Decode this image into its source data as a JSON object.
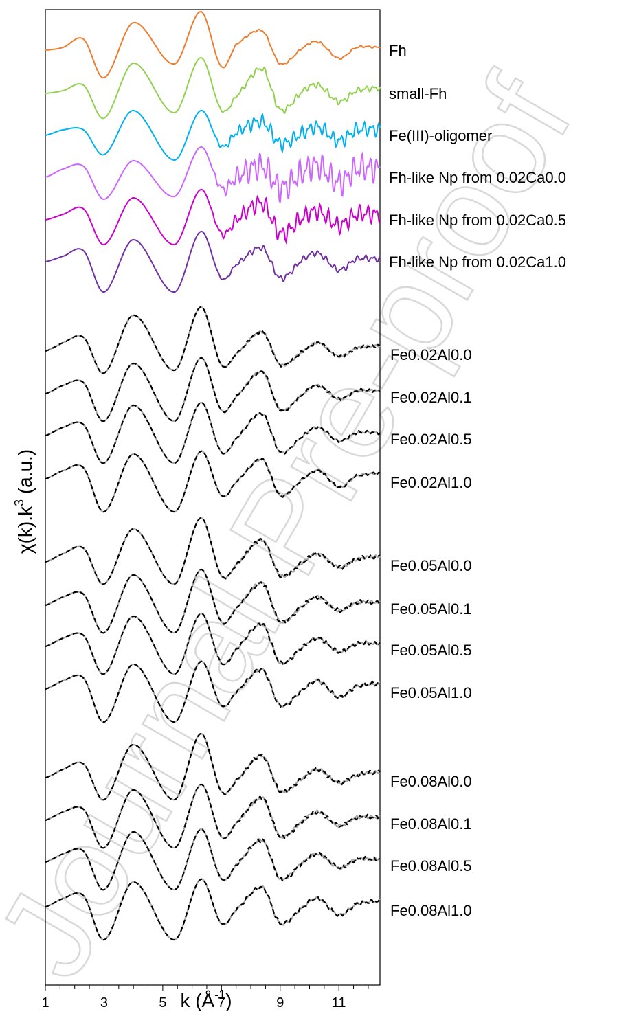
{
  "watermark": "Journal Pre-proof",
  "chart_data": {
    "type": "line",
    "title": "",
    "xlabel": "k (Å",
    "xlabel_sup": "-1",
    "xlabel_close": ")",
    "ylabel": "χ(k).k",
    "ylabel_sup": "3",
    "ylabel_rest": " (a.u.)",
    "xlim": [
      1,
      12.4
    ],
    "x_ticks": [
      1,
      3,
      5,
      7,
      9,
      11
    ],
    "x_tick_labels": [
      "1",
      "3",
      "5",
      "7",
      "9",
      "11"
    ],
    "y_ticks_shown": false,
    "grid": false,
    "legend": "labels placed at right end of each spectrum",
    "feature_k": [
      1.0,
      1.6,
      2.3,
      3.0,
      4.0,
      5.4,
      6.3,
      7.0,
      7.5,
      8.4,
      9.0,
      9.8,
      10.3,
      11.0,
      11.6,
      12.4
    ],
    "series": [
      {
        "name": "Fh",
        "color": "#ED7D31",
        "noise": 0.04,
        "values": [
          0.0,
          0.1,
          0.4,
          -1.0,
          1.0,
          -0.5,
          1.4,
          -0.6,
          0.2,
          0.7,
          -0.5,
          0.1,
          0.3,
          -0.3,
          0.1,
          0.1
        ]
      },
      {
        "name": "small-Fh",
        "color": "#92D050",
        "noise": 0.12,
        "values": [
          0.0,
          0.1,
          0.3,
          -0.9,
          1.1,
          -0.7,
          1.3,
          -0.6,
          -0.1,
          0.9,
          -0.6,
          0.1,
          0.3,
          -0.3,
          0.1,
          0.2
        ]
      },
      {
        "name": "Fe(III)-oligomer",
        "color": "#00B0F0",
        "noise": 0.28,
        "values": [
          0.0,
          0.2,
          0.2,
          -0.7,
          0.9,
          -0.9,
          0.9,
          -0.4,
          0.1,
          0.5,
          -0.3,
          0.1,
          0.3,
          -0.2,
          0.2,
          0.2
        ]
      },
      {
        "name": "Fh-like Np from 0.02Ca0.0",
        "color": "#CC66FF",
        "noise": 0.55,
        "values": [
          0.0,
          0.3,
          0.4,
          -0.8,
          0.6,
          -0.7,
          1.1,
          -0.4,
          0.0,
          0.4,
          -0.4,
          0.2,
          0.4,
          -0.2,
          0.3,
          0.3
        ]
      },
      {
        "name": "Fh-like Np from 0.02Ca0.5",
        "color": "#CC00CC",
        "noise": 0.35,
        "values": [
          0.0,
          0.2,
          0.4,
          -0.9,
          0.8,
          -0.9,
          1.1,
          -0.5,
          0.0,
          0.6,
          -0.5,
          0.1,
          0.3,
          -0.2,
          0.2,
          0.2
        ]
      },
      {
        "name": "Fh-like Np from 0.02Ca1.0",
        "color": "#7030A0",
        "noise": 0.12,
        "values": [
          0.0,
          0.2,
          0.4,
          -1.1,
          0.8,
          -1.1,
          1.1,
          -0.6,
          -0.1,
          0.5,
          -0.6,
          0.1,
          0.3,
          -0.3,
          0.1,
          0.1
        ]
      },
      {
        "name": "Fe0.02Al0.0",
        "color": "#000000",
        "fit": true,
        "noise": 0.06,
        "values": [
          0.0,
          0.3,
          0.5,
          -0.8,
          1.3,
          -0.7,
          1.6,
          -0.5,
          -0.1,
          0.7,
          -0.5,
          0.0,
          0.3,
          -0.2,
          0.1,
          0.2
        ]
      },
      {
        "name": "Fe0.02Al0.1",
        "color": "#000000",
        "fit": true,
        "noise": 0.06,
        "values": [
          0.0,
          0.3,
          0.4,
          -1.0,
          1.1,
          -1.0,
          1.3,
          -0.6,
          -0.1,
          0.8,
          -0.6,
          0.0,
          0.3,
          -0.2,
          0.1,
          0.1
        ]
      },
      {
        "name": "Fe0.02Al0.5",
        "color": "#000000",
        "fit": true,
        "noise": 0.06,
        "values": [
          0.0,
          0.3,
          0.4,
          -1.0,
          1.1,
          -1.0,
          1.2,
          -0.6,
          -0.1,
          0.8,
          -0.6,
          0.0,
          0.3,
          -0.2,
          0.1,
          0.1
        ]
      },
      {
        "name": "Fe0.02Al1.0",
        "color": "#000000",
        "fit": true,
        "noise": 0.06,
        "values": [
          0.0,
          0.3,
          0.4,
          -1.2,
          0.9,
          -1.2,
          1.0,
          -0.6,
          -0.1,
          0.7,
          -0.6,
          0.0,
          0.3,
          -0.3,
          0.1,
          0.2
        ]
      },
      {
        "name": "Fe0.05Al0.0",
        "color": "#000000",
        "fit": true,
        "noise": 0.08,
        "values": [
          0.0,
          0.3,
          0.5,
          -0.8,
          1.2,
          -0.8,
          1.6,
          -0.5,
          -0.1,
          0.8,
          -0.5,
          0.0,
          0.3,
          -0.2,
          0.1,
          0.2
        ]
      },
      {
        "name": "Fe0.05Al0.1",
        "color": "#000000",
        "fit": true,
        "noise": 0.08,
        "values": [
          0.0,
          0.3,
          0.4,
          -1.0,
          1.1,
          -1.0,
          1.3,
          -0.6,
          -0.1,
          0.8,
          -0.6,
          0.0,
          0.3,
          -0.2,
          0.1,
          0.1
        ]
      },
      {
        "name": "Fe0.05Al0.5",
        "color": "#000000",
        "fit": true,
        "noise": 0.08,
        "values": [
          0.0,
          0.3,
          0.4,
          -1.0,
          1.1,
          -1.0,
          1.2,
          -0.6,
          -0.1,
          0.8,
          -0.6,
          0.0,
          0.3,
          -0.2,
          0.1,
          0.1
        ]
      },
      {
        "name": "Fe0.05Al1.0",
        "color": "#000000",
        "fit": true,
        "noise": 0.08,
        "values": [
          0.0,
          0.3,
          0.4,
          -1.2,
          0.9,
          -1.2,
          1.0,
          -0.6,
          -0.1,
          0.7,
          -0.6,
          0.0,
          0.3,
          -0.3,
          0.1,
          0.2
        ]
      },
      {
        "name": "Fe0.08Al0.0",
        "color": "#000000",
        "fit": true,
        "noise": 0.08,
        "values": [
          0.0,
          0.3,
          0.5,
          -0.8,
          1.2,
          -0.8,
          1.6,
          -0.5,
          -0.1,
          0.8,
          -0.5,
          0.0,
          0.3,
          -0.2,
          0.1,
          0.2
        ]
      },
      {
        "name": "Fe0.08Al0.1",
        "color": "#000000",
        "fit": true,
        "noise": 0.08,
        "values": [
          0.0,
          0.3,
          0.4,
          -1.0,
          1.1,
          -1.0,
          1.3,
          -0.6,
          -0.1,
          0.8,
          -0.6,
          0.0,
          0.3,
          -0.2,
          0.1,
          0.1
        ]
      },
      {
        "name": "Fe0.08Al0.5",
        "color": "#000000",
        "fit": true,
        "noise": 0.08,
        "values": [
          0.0,
          0.3,
          0.4,
          -1.0,
          1.1,
          -1.0,
          1.2,
          -0.6,
          -0.1,
          0.8,
          -0.6,
          0.0,
          0.3,
          -0.2,
          0.1,
          0.1
        ]
      },
      {
        "name": "Fe0.08Al1.0",
        "color": "#000000",
        "fit": true,
        "noise": 0.08,
        "values": [
          0.0,
          0.3,
          0.4,
          -1.2,
          0.9,
          -1.2,
          1.0,
          -0.6,
          -0.1,
          0.7,
          -0.6,
          0.0,
          0.3,
          -0.3,
          0.1,
          0.2
        ]
      }
    ]
  }
}
